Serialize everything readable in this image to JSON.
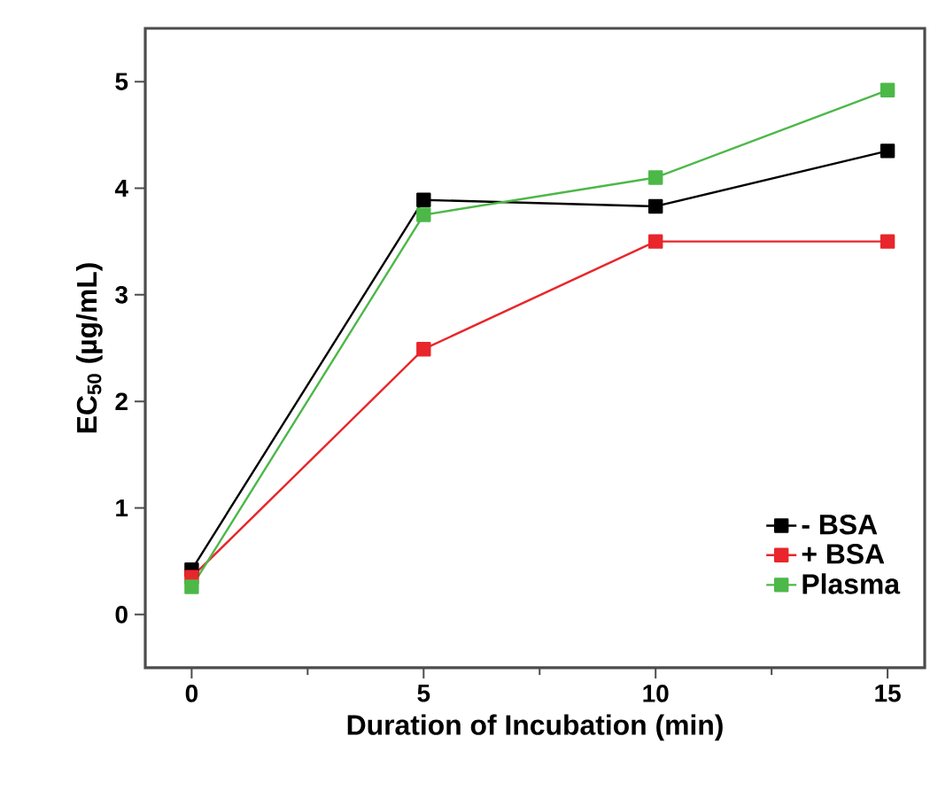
{
  "chart_data": {
    "type": "line",
    "xlabel": "Duration of Incubation (min)",
    "ylabel": "EC$_{50}$ (µg/mL)",
    "x": [
      0,
      5,
      10,
      15
    ],
    "series": [
      {
        "name": "- BSA",
        "color": "#000000",
        "values": [
          0.42,
          3.89,
          3.83,
          4.35
        ]
      },
      {
        "name": "+ BSA",
        "color": "#e8262b",
        "values": [
          0.35,
          2.49,
          3.5,
          3.5
        ]
      },
      {
        "name": "Plasma",
        "color": "#4cb848",
        "values": [
          0.26,
          3.75,
          4.1,
          4.92
        ]
      }
    ],
    "xlim": [
      -1,
      15.8
    ],
    "ylim": [
      -0.5,
      5.5
    ],
    "xticks": [
      0,
      5,
      10,
      15
    ],
    "yticks": [
      0,
      1,
      2,
      3,
      4,
      5
    ],
    "marker": "square",
    "line_style": "solid",
    "legend": "bottom right",
    "grid": false
  }
}
